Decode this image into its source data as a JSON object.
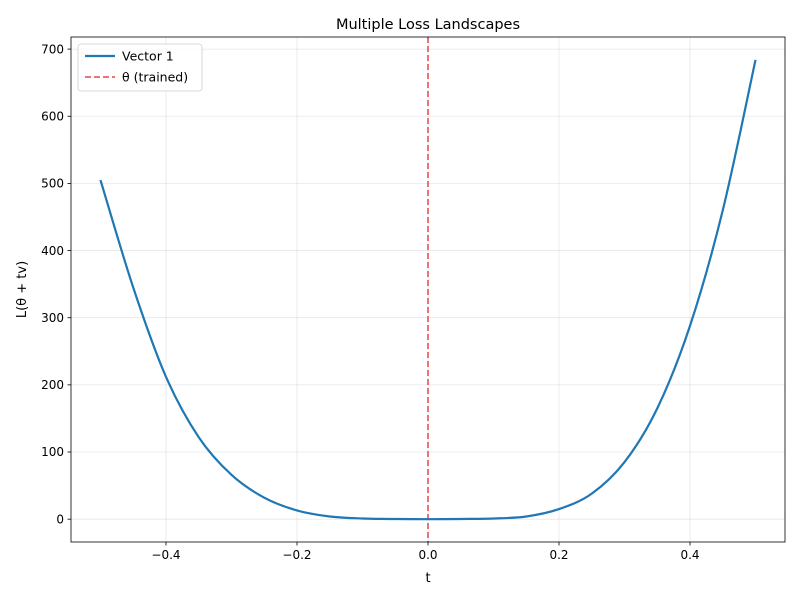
{
  "chart_data": {
    "type": "line",
    "title": "Multiple Loss Landscapes",
    "xlabel": "t",
    "ylabel": "L(θ + tv)",
    "xlim": [
      -0.545,
      0.545
    ],
    "ylim": [
      -34,
      718
    ],
    "xticks": [
      -0.4,
      -0.2,
      0.0,
      0.2,
      0.4
    ],
    "xtick_labels": [
      "−0.4",
      "−0.2",
      "0.0",
      "0.2",
      "0.4"
    ],
    "yticks": [
      0,
      100,
      200,
      300,
      400,
      500,
      600,
      700
    ],
    "ytick_labels": [
      "0",
      "100",
      "200",
      "300",
      "400",
      "500",
      "600",
      "700"
    ],
    "grid": true,
    "legend_position": "top-left",
    "series": [
      {
        "name": "Vector 1",
        "color": "#1f77b4",
        "style": "solid",
        "x": [
          -0.5,
          -0.45,
          -0.4,
          -0.35,
          -0.3,
          -0.25,
          -0.2,
          -0.15,
          -0.1,
          -0.05,
          0.0,
          0.05,
          0.1,
          0.15,
          0.2,
          0.25,
          0.3,
          0.35,
          0.4,
          0.45,
          0.5
        ],
        "y": [
          505,
          345,
          212,
          122,
          66,
          32,
          13,
          4,
          1,
          0.2,
          0,
          0.3,
          1,
          4,
          15,
          38,
          85,
          165,
          288,
          460,
          684
        ]
      }
    ],
    "vlines": [
      {
        "name": "θ (trained)",
        "x": 0.0,
        "color": "#e8474c",
        "style": "dashed"
      }
    ]
  }
}
